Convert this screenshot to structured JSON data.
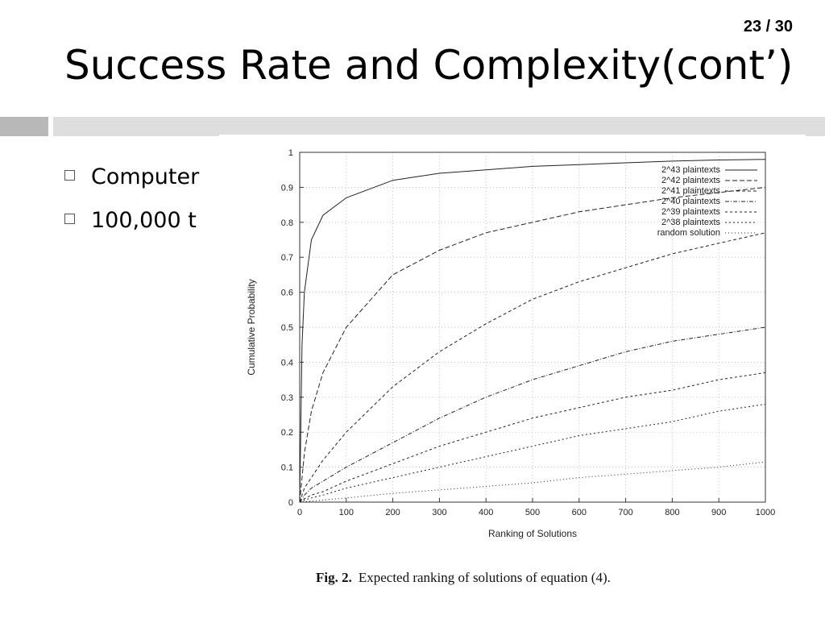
{
  "slide": {
    "page_number": "23 / 30",
    "title": "Success Rate and Complexity(cont’)",
    "bullets": [
      "Computer",
      "100,000 t"
    ]
  },
  "figure": {
    "caption_label": "Fig. 2.",
    "caption_text": "Expected ranking of solutions of equation (4)."
  },
  "chart_data": {
    "type": "line",
    "xlabel": "Ranking of Solutions",
    "ylabel": "Cumulative Probability",
    "xlim": [
      0,
      1000
    ],
    "ylim": [
      0,
      1
    ],
    "xticks": [
      "0",
      "100",
      "200",
      "300",
      "400",
      "500",
      "600",
      "700",
      "800",
      "900",
      "1000"
    ],
    "yticks": [
      "0",
      "0.1",
      "0.2",
      "0.3",
      "0.4",
      "0.5",
      "0.6",
      "0.7",
      "0.8",
      "0.9",
      "1"
    ],
    "grid": true,
    "legend_position": "top-right",
    "x": [
      0,
      5,
      10,
      25,
      50,
      100,
      200,
      300,
      400,
      500,
      600,
      700,
      800,
      900,
      1000
    ],
    "series": [
      {
        "name": "2^43 plaintexts",
        "dash": "none",
        "values": [
          0,
          0.45,
          0.6,
          0.75,
          0.82,
          0.87,
          0.92,
          0.94,
          0.95,
          0.96,
          0.965,
          0.97,
          0.975,
          0.978,
          0.98
        ]
      },
      {
        "name": "2^42 plaintexts",
        "dash": "6 3",
        "values": [
          0,
          0.07,
          0.14,
          0.26,
          0.37,
          0.5,
          0.65,
          0.72,
          0.77,
          0.8,
          0.83,
          0.85,
          0.87,
          0.885,
          0.9
        ]
      },
      {
        "name": "2^41 plaintexts",
        "dash": "4 3",
        "values": [
          0,
          0.02,
          0.04,
          0.07,
          0.12,
          0.2,
          0.33,
          0.43,
          0.51,
          0.58,
          0.63,
          0.67,
          0.71,
          0.74,
          0.77
        ]
      },
      {
        "name": "2^40 plaintexts",
        "dash": "5 2 1 2",
        "values": [
          0,
          0.01,
          0.02,
          0.04,
          0.06,
          0.1,
          0.17,
          0.24,
          0.3,
          0.35,
          0.39,
          0.43,
          0.46,
          0.48,
          0.5
        ]
      },
      {
        "name": "2^39 plaintexts",
        "dash": "3 3",
        "values": [
          0,
          0.005,
          0.01,
          0.02,
          0.03,
          0.06,
          0.11,
          0.16,
          0.2,
          0.24,
          0.27,
          0.3,
          0.32,
          0.35,
          0.37
        ]
      },
      {
        "name": "2^38 plaintexts",
        "dash": "2 3",
        "values": [
          0,
          0.003,
          0.006,
          0.012,
          0.02,
          0.04,
          0.07,
          0.1,
          0.13,
          0.16,
          0.19,
          0.21,
          0.23,
          0.26,
          0.28
        ]
      },
      {
        "name": "random solution",
        "dash": "1 3",
        "values": [
          0,
          0.0005,
          0.001,
          0.003,
          0.006,
          0.012,
          0.025,
          0.035,
          0.045,
          0.055,
          0.07,
          0.08,
          0.09,
          0.1,
          0.115
        ]
      }
    ]
  }
}
